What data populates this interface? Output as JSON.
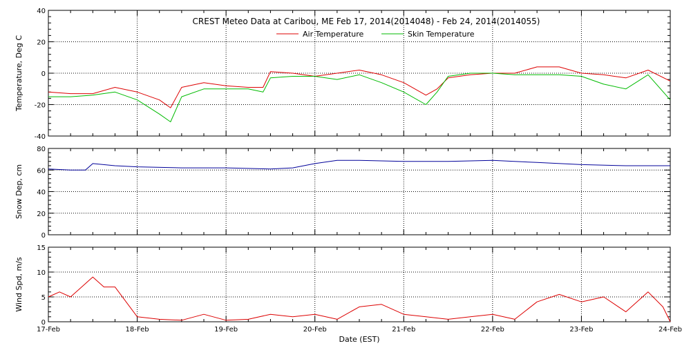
{
  "colors": {
    "air_temperature": "#dd0000",
    "skin_temperature": "#00bb00",
    "snow_depth": "#000099",
    "wind_speed": "#dd0000",
    "grid": "#000000",
    "axes": "#000000"
  },
  "chart_data": [
    {
      "type": "line",
      "title": "CREST Meteo Data at Caribou, ME   Feb 17, 2014(2014048) - Feb 24, 2014(2014055)",
      "ylabel": "Temperature, Deg C",
      "xlabel": "",
      "ylim": [
        -40,
        40
      ],
      "yticks": [
        "-40",
        "-20",
        "0",
        "20",
        "40"
      ],
      "ytick_values": [
        -40,
        -20,
        0,
        20,
        40
      ],
      "grid": true,
      "legend_placement": "top-center",
      "x": [
        "Feb 17 00:00",
        "Feb 17 06:00",
        "Feb 17 12:00",
        "Feb 17 18:00",
        "Feb 18 00:00",
        "Feb 18 06:00",
        "Feb 18 09:00",
        "Feb 18 12:00",
        "Feb 18 18:00",
        "Feb 19 00:00",
        "Feb 19 06:00",
        "Feb 19 10:00",
        "Feb 19 12:00",
        "Feb 19 18:00",
        "Feb 20 00:00",
        "Feb 20 06:00",
        "Feb 20 12:00",
        "Feb 20 18:00",
        "Feb 21 00:00",
        "Feb 21 06:00",
        "Feb 21 09:00",
        "Feb 21 12:00",
        "Feb 21 18:00",
        "Feb 22 00:00",
        "Feb 22 06:00",
        "Feb 22 12:00",
        "Feb 22 18:00",
        "Feb 23 00:00",
        "Feb 23 06:00",
        "Feb 23 12:00",
        "Feb 23 18:00",
        "Feb 24 00:00"
      ],
      "series": [
        {
          "name": "Air Temperature",
          "values": [
            -12,
            -13,
            -13,
            -9,
            -12,
            -17,
            -22,
            -9,
            -6,
            -8,
            -9,
            -9,
            1,
            0,
            -2,
            0,
            2,
            -1,
            -6,
            -14,
            -10,
            -3,
            -1,
            0,
            0,
            4,
            4,
            0,
            -1,
            -3,
            2,
            -5
          ]
        },
        {
          "name": "Skin Temperature",
          "values": [
            -15,
            -15,
            -14,
            -12,
            -17,
            -26,
            -31,
            -15,
            -10,
            -10,
            -10,
            -12,
            -3,
            -2,
            -2,
            -4,
            -1,
            -6,
            -12,
            -20,
            -12,
            -2,
            0,
            0,
            -1,
            -1,
            -1,
            -2,
            -7,
            -10,
            -1,
            -17
          ]
        }
      ]
    },
    {
      "type": "line",
      "title": "",
      "ylabel": "Snow Dep, cm",
      "xlabel": "",
      "ylim": [
        0,
        80
      ],
      "yticks": [
        "0",
        "20",
        "40",
        "60",
        "80"
      ],
      "ytick_values": [
        0,
        20,
        40,
        60,
        80
      ],
      "grid": true,
      "x": [
        "Feb 17 00:00",
        "Feb 17 06:00",
        "Feb 17 10:00",
        "Feb 17 12:00",
        "Feb 17 18:00",
        "Feb 18 00:00",
        "Feb 18 12:00",
        "Feb 19 00:00",
        "Feb 19 12:00",
        "Feb 19 18:00",
        "Feb 20 00:00",
        "Feb 20 06:00",
        "Feb 20 12:00",
        "Feb 21 00:00",
        "Feb 21 12:00",
        "Feb 22 00:00",
        "Feb 22 12:00",
        "Feb 23 00:00",
        "Feb 23 12:00",
        "Feb 24 00:00"
      ],
      "series": [
        {
          "name": "",
          "values": [
            61,
            60,
            60,
            66,
            64,
            63,
            62,
            62,
            61,
            62,
            66,
            69,
            69,
            68,
            68,
            69,
            67,
            65,
            64,
            64
          ]
        }
      ]
    },
    {
      "type": "line",
      "title": "",
      "ylabel": "Wind Spd, m/s",
      "xlabel": "Date (EST)",
      "ylim": [
        0,
        15
      ],
      "yticks": [
        "0",
        "5",
        "10",
        "15"
      ],
      "ytick_values": [
        0,
        5,
        10,
        15
      ],
      "xticks": [
        "17-Feb",
        "18-Feb",
        "19-Feb",
        "20-Feb",
        "21-Feb",
        "22-Feb",
        "23-Feb",
        "24-Feb"
      ],
      "grid": true,
      "x": [
        "Feb 17 00:00",
        "Feb 17 03:00",
        "Feb 17 06:00",
        "Feb 17 09:00",
        "Feb 17 12:00",
        "Feb 17 15:00",
        "Feb 17 18:00",
        "Feb 17 21:00",
        "Feb 18 00:00",
        "Feb 18 06:00",
        "Feb 18 12:00",
        "Feb 18 18:00",
        "Feb 19 00:00",
        "Feb 19 06:00",
        "Feb 19 12:00",
        "Feb 19 18:00",
        "Feb 20 00:00",
        "Feb 20 06:00",
        "Feb 20 12:00",
        "Feb 20 18:00",
        "Feb 21 00:00",
        "Feb 21 06:00",
        "Feb 21 12:00",
        "Feb 21 18:00",
        "Feb 22 00:00",
        "Feb 22 06:00",
        "Feb 22 12:00",
        "Feb 22 18:00",
        "Feb 23 00:00",
        "Feb 23 06:00",
        "Feb 23 12:00",
        "Feb 23 18:00",
        "Feb 23 22:00",
        "Feb 24 00:00"
      ],
      "series": [
        {
          "name": "",
          "values": [
            5,
            6,
            5,
            7,
            9,
            7,
            7,
            4,
            1,
            0.5,
            0.3,
            1.5,
            0.3,
            0.5,
            1.5,
            1,
            1.5,
            0.5,
            3,
            3.5,
            1.5,
            1,
            0.5,
            1,
            1.5,
            0.5,
            4,
            5.5,
            4,
            5,
            2,
            6,
            3,
            0
          ]
        }
      ]
    }
  ]
}
